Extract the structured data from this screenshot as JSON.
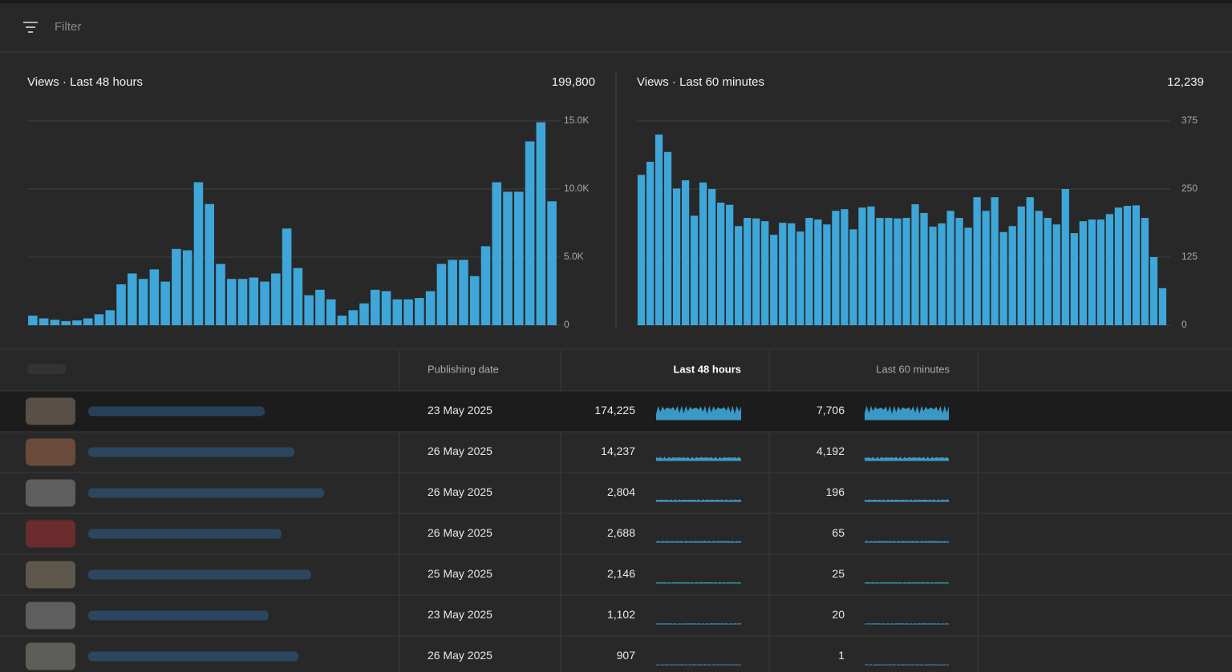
{
  "filter": {
    "placeholder": "Filter"
  },
  "chart_data": [
    {
      "type": "bar",
      "title": "Views · Last 48 hours",
      "total": "199,800",
      "color": "#3ea6d8",
      "values": [
        700,
        500,
        400,
        300,
        350,
        500,
        800,
        1100,
        3000,
        3800,
        3400,
        4100,
        3200,
        5600,
        5500,
        10500,
        8900,
        4500,
        3400,
        3400,
        3500,
        3200,
        3800,
        7100,
        4200,
        2200,
        2600,
        1900,
        700,
        1100,
        1600,
        2600,
        2500,
        1900,
        1900,
        2000,
        2500,
        4500,
        4800,
        4800,
        3600,
        5800,
        10500,
        9800,
        9800,
        13500,
        14900,
        9100
      ],
      "ylim": [
        0,
        15000
      ],
      "yticks": [
        0,
        {
          "value": 5000,
          "label": "5.0K"
        },
        {
          "value": 10000,
          "label": "10.0K"
        },
        {
          "value": 15000,
          "label": "15.0K"
        }
      ],
      "grid": true
    },
    {
      "type": "bar",
      "title": "Views · Last 60 minutes",
      "total": "12,239",
      "color": "#3ea6d8",
      "values": [
        276,
        300,
        350,
        318,
        251,
        266,
        201,
        262,
        250,
        225,
        221,
        182,
        197,
        196,
        191,
        166,
        188,
        187,
        172,
        197,
        194,
        185,
        210,
        213,
        176,
        216,
        218,
        197,
        197,
        196,
        197,
        222,
        206,
        181,
        187,
        210,
        197,
        179,
        235,
        210,
        235,
        171,
        182,
        218,
        235,
        210,
        197,
        185,
        250,
        169,
        191,
        194,
        194,
        204,
        216,
        219,
        220,
        197,
        125,
        68
      ],
      "ylim": [
        0,
        375
      ],
      "yticks": [
        0,
        125,
        250,
        375
      ],
      "grid": true
    }
  ],
  "table": {
    "headers": {
      "date": "Publishing date",
      "last_48": "Last 48 hours",
      "last_60": "Last 60 minutes"
    },
    "rows": [
      {
        "date": "23 May 2025",
        "last_48": "174,225",
        "last_60": "7,706"
      },
      {
        "date": "26 May 2025",
        "last_48": "14,237",
        "last_60": "4,192"
      },
      {
        "date": "26 May 2025",
        "last_48": "2,804",
        "last_60": "196"
      },
      {
        "date": "26 May 2025",
        "last_48": "2,688",
        "last_60": "65"
      },
      {
        "date": "25 May 2025",
        "last_48": "2,146",
        "last_60": "25"
      },
      {
        "date": "23 May 2025",
        "last_48": "1,102",
        "last_60": "20"
      },
      {
        "date": "26 May 2025",
        "last_48": "907",
        "last_60": "1"
      }
    ]
  }
}
